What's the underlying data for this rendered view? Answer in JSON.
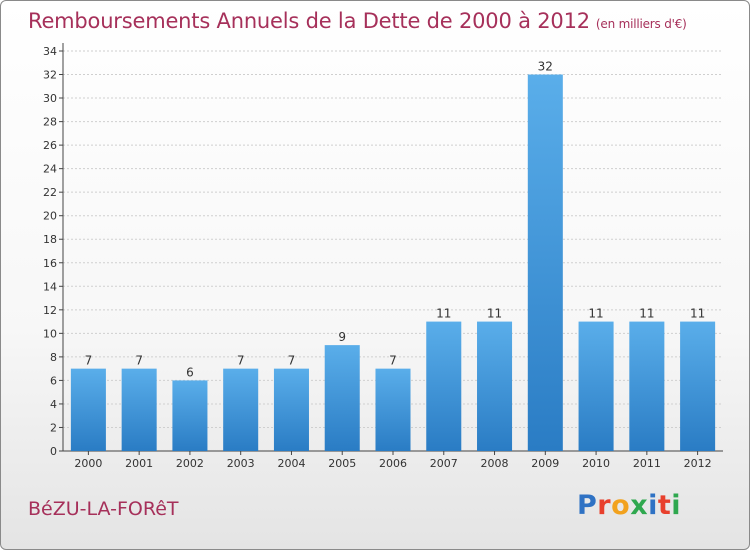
{
  "title": "Remboursements Annuels de la Dette de 2000 à 2012",
  "unit": "(en milliers d'€)",
  "commune": "BéZU-LA-FORêT",
  "brand": {
    "letters": [
      "P",
      "r",
      "o",
      "x",
      "i",
      "t",
      "i"
    ],
    "colors": [
      "#2f72c4",
      "#e8402d",
      "#f2a21e",
      "#2fa84f",
      "#2f72c4",
      "#e8402d",
      "#2fa84f"
    ]
  },
  "chart_data": {
    "type": "bar",
    "title": "Remboursements Annuels de la Dette de 2000 à 2012",
    "xlabel": "",
    "ylabel": "",
    "categories": [
      "2000",
      "2001",
      "2002",
      "2003",
      "2004",
      "2005",
      "2006",
      "2007",
      "2008",
      "2009",
      "2010",
      "2011",
      "2012"
    ],
    "values": [
      7,
      7,
      6,
      7,
      7,
      9,
      7,
      11,
      11,
      32,
      11,
      11,
      11
    ],
    "ylim": [
      0,
      34
    ],
    "yticks": [
      0,
      2,
      4,
      6,
      8,
      10,
      12,
      14,
      16,
      18,
      20,
      22,
      24,
      26,
      28,
      30,
      32,
      34
    ],
    "grid": true,
    "bar_color": "#3b8fd6"
  }
}
